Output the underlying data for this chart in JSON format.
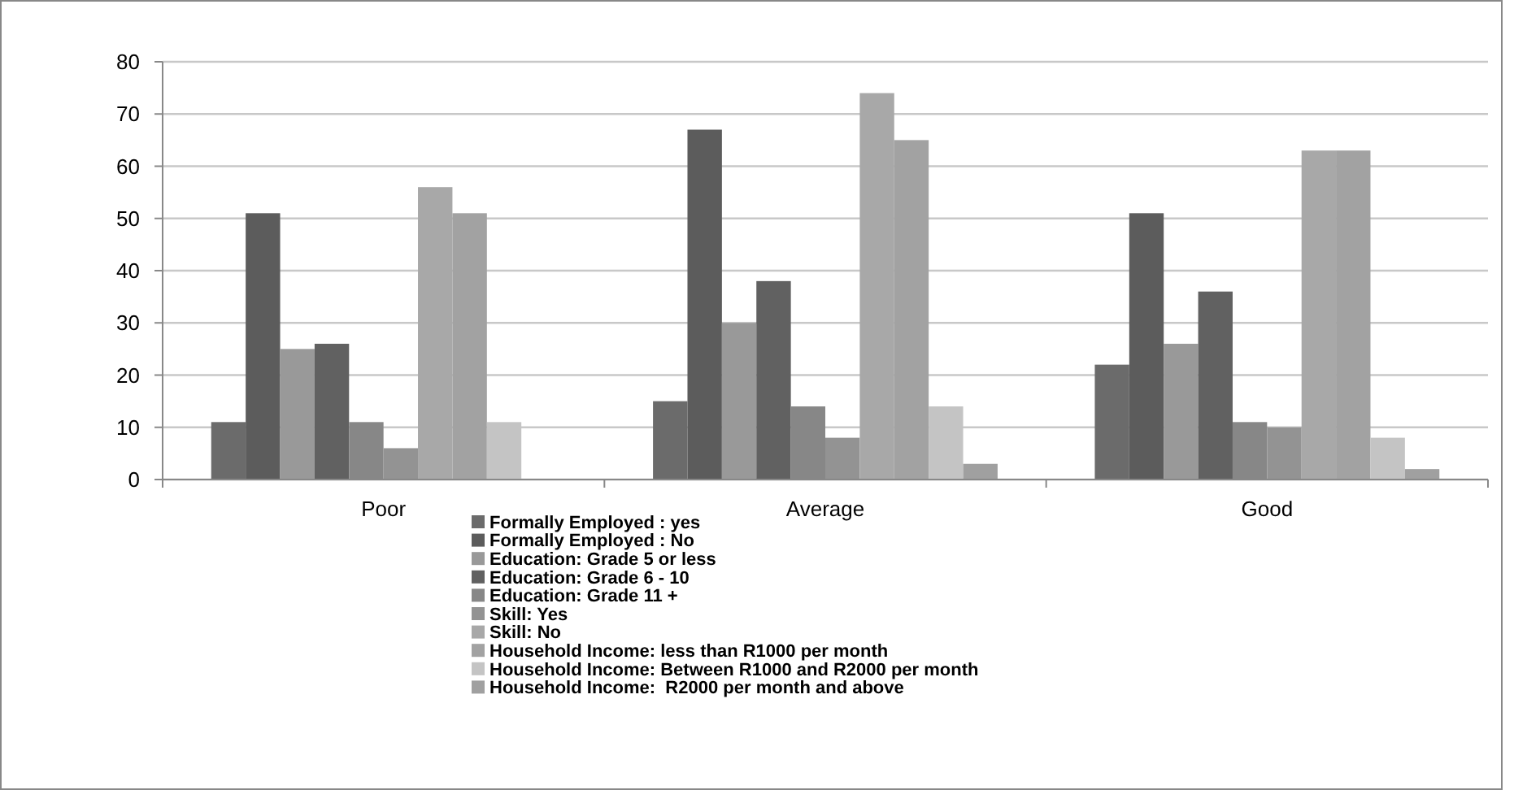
{
  "chart_data": {
    "type": "bar",
    "categories": [
      "Poor",
      "Average",
      "Good"
    ],
    "series": [
      {
        "name": "Formally Employed : yes",
        "color": "#6b6b6b",
        "values": [
          11,
          15,
          22
        ]
      },
      {
        "name": "Formally Employed : No",
        "color": "#5c5c5c",
        "values": [
          51,
          67,
          51
        ]
      },
      {
        "name": "Education: Grade 5 or less",
        "color": "#999999",
        "values": [
          25,
          30,
          26
        ]
      },
      {
        "name": "Education: Grade 6 - 10",
        "color": "#616161",
        "values": [
          26,
          38,
          36
        ]
      },
      {
        "name": "Education: Grade 11 +",
        "color": "#878787",
        "values": [
          11,
          14,
          11
        ]
      },
      {
        "name": "Skill: Yes",
        "color": "#939393",
        "values": [
          6,
          8,
          10
        ]
      },
      {
        "name": "Skill: No",
        "color": "#a8a8a8",
        "values": [
          56,
          74,
          63
        ]
      },
      {
        "name": "Household Income: less than R1000 per month",
        "color": "#a2a2a2",
        "values": [
          51,
          65,
          63
        ]
      },
      {
        "name": "Household Income: Between R1000 and R2000 per month",
        "color": "#c4c4c4",
        "values": [
          11,
          14,
          8
        ]
      },
      {
        "name": "Household Income:  R2000 per month and above",
        "color": "#a0a0a0",
        "values": [
          0,
          3,
          2
        ]
      }
    ],
    "ylim": [
      0,
      80
    ],
    "yticks": [
      0,
      10,
      20,
      30,
      40,
      50,
      60,
      70,
      80
    ],
    "grid": "y",
    "legend": "bottom"
  }
}
